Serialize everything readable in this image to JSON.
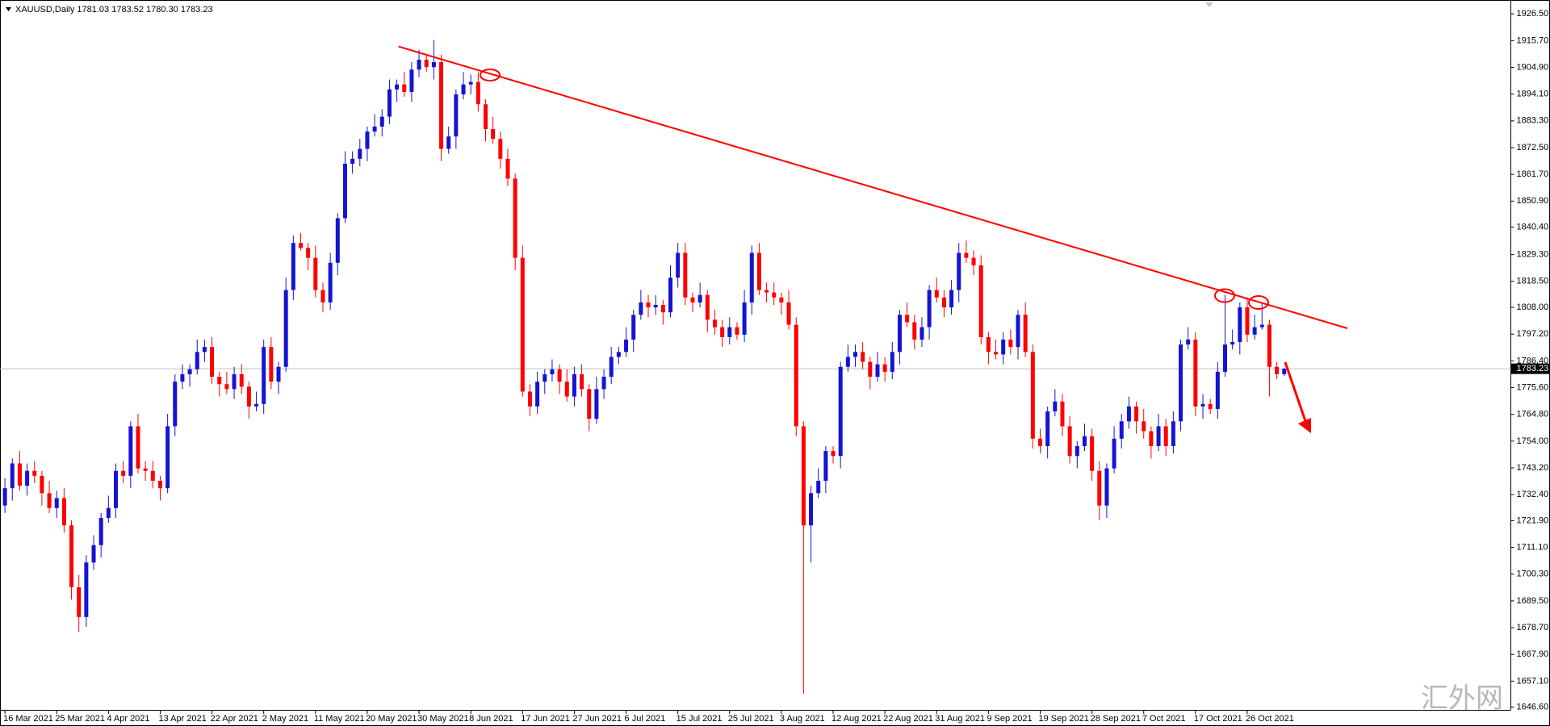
{
  "chart_data": {
    "type": "candlestick",
    "title": "XAUUSD,Daily  1781.03 1783.52 1780.30 1783.23",
    "watermark": "汇外网",
    "up_color": "#1414d2",
    "down_color": "#ff0000",
    "ylim": [
      1645.5,
      1932.1
    ],
    "yticks": [
      {
        "value": 1926.5,
        "label": "1926.50"
      },
      {
        "value": 1915.7,
        "label": "1915.70"
      },
      {
        "value": 1904.9,
        "label": "1904.90"
      },
      {
        "value": 1894.1,
        "label": "1894.10"
      },
      {
        "value": 1883.3,
        "label": "1883.30"
      },
      {
        "value": 1872.5,
        "label": "1872.50"
      },
      {
        "value": 1861.7,
        "label": "1861.70"
      },
      {
        "value": 1850.9,
        "label": "1850.90"
      },
      {
        "value": 1840.4,
        "label": "1840.40"
      },
      {
        "value": 1829.3,
        "label": "1829.30"
      },
      {
        "value": 1818.5,
        "label": "1818.50"
      },
      {
        "value": 1808,
        "label": "1808.00"
      },
      {
        "value": 1797.2,
        "label": "1797.20"
      },
      {
        "value": 1786.4,
        "label": "1786.40"
      },
      {
        "value": 1775.6,
        "label": "1775.60"
      },
      {
        "value": 1764.8,
        "label": "1764.80"
      },
      {
        "value": 1754,
        "label": "1754.00"
      },
      {
        "value": 1743.2,
        "label": "1743.20"
      },
      {
        "value": 1732.4,
        "label": "1732.40"
      },
      {
        "value": 1721.9,
        "label": "1721.90"
      },
      {
        "value": 1711.1,
        "label": "1711.10"
      },
      {
        "value": 1700.3,
        "label": "1700.30"
      },
      {
        "value": 1689.5,
        "label": "1689.50"
      },
      {
        "value": 1678.7,
        "label": "1678.70"
      },
      {
        "value": 1667.9,
        "label": "1667.90"
      },
      {
        "value": 1657.1,
        "label": "1657.10"
      },
      {
        "value": 1646.6,
        "label": "1646.60"
      }
    ],
    "categories": [
      "16 Mar 2021",
      null,
      null,
      null,
      null,
      null,
      null,
      "25 Mar 2021",
      null,
      null,
      null,
      null,
      null,
      null,
      "4 Apr 2021",
      null,
      null,
      null,
      null,
      null,
      null,
      "13 Apr 2021",
      null,
      null,
      null,
      null,
      null,
      null,
      "22 Apr 2021",
      null,
      null,
      null,
      null,
      null,
      null,
      "2 May 2021",
      null,
      null,
      null,
      null,
      null,
      null,
      "11 May 2021",
      null,
      null,
      null,
      null,
      null,
      null,
      "20 May 2021",
      null,
      null,
      null,
      null,
      null,
      null,
      "30 May 2021",
      null,
      null,
      null,
      null,
      null,
      null,
      "8 Jun 2021",
      null,
      null,
      null,
      null,
      null,
      null,
      "17 Jun 2021",
      null,
      null,
      null,
      null,
      null,
      null,
      "27 Jun 2021",
      null,
      null,
      null,
      null,
      null,
      null,
      "6 Jul 2021",
      null,
      null,
      null,
      null,
      null,
      null,
      "15 Jul 2021",
      null,
      null,
      null,
      null,
      null,
      null,
      "25 Jul 2021",
      null,
      null,
      null,
      null,
      null,
      null,
      "3 Aug 2021",
      null,
      null,
      null,
      null,
      null,
      null,
      "12 Aug 2021",
      null,
      null,
      null,
      null,
      null,
      null,
      "22 Aug 2021",
      null,
      null,
      null,
      null,
      null,
      null,
      "31 Aug 2021",
      null,
      null,
      null,
      null,
      null,
      null,
      "9 Sep 2021",
      null,
      null,
      null,
      null,
      null,
      null,
      "19 Sep 2021",
      null,
      null,
      null,
      null,
      null,
      null,
      "28 Sep 2021",
      null,
      null,
      null,
      null,
      null,
      null,
      "7 Oct 2021",
      null,
      null,
      null,
      null,
      null,
      null,
      "17 Oct 2021",
      null,
      null,
      null,
      null,
      null,
      null,
      "26 Oct 2021",
      null,
      null,
      null,
      null,
      null
    ],
    "candles": [
      [
        1728,
        1739,
        1725,
        1735
      ],
      [
        1735,
        1747,
        1730,
        1745
      ],
      [
        1745,
        1750,
        1734,
        1736
      ],
      [
        1736,
        1745,
        1732,
        1742
      ],
      [
        1742,
        1746,
        1737,
        1740
      ],
      [
        1740,
        1742,
        1728,
        1733
      ],
      [
        1733,
        1738,
        1725,
        1727
      ],
      [
        1727,
        1734,
        1723,
        1731
      ],
      [
        1731,
        1735,
        1717,
        1720
      ],
      [
        1720,
        1722,
        1690,
        1695
      ],
      [
        1695,
        1700,
        1677,
        1683
      ],
      [
        1683,
        1708,
        1679,
        1705
      ],
      [
        1705,
        1716,
        1702,
        1712
      ],
      [
        1712,
        1725,
        1707,
        1723
      ],
      [
        1723,
        1732,
        1721,
        1727
      ],
      [
        1727,
        1745,
        1723,
        1742
      ],
      [
        1742,
        1746,
        1737,
        1740
      ],
      [
        1740,
        1762,
        1735,
        1760
      ],
      [
        1760,
        1765,
        1741,
        1743
      ],
      [
        1743,
        1746,
        1738,
        1742
      ],
      [
        1742,
        1746,
        1735,
        1738
      ],
      [
        1738,
        1740,
        1730,
        1735
      ],
      [
        1735,
        1765,
        1733,
        1760
      ],
      [
        1760,
        1781,
        1756,
        1778
      ],
      [
        1778,
        1785,
        1775,
        1781
      ],
      [
        1781,
        1785,
        1776,
        1783
      ],
      [
        1783,
        1795,
        1781,
        1790
      ],
      [
        1790,
        1795,
        1786,
        1792
      ],
      [
        1792,
        1796,
        1777,
        1780
      ],
      [
        1780,
        1782,
        1772,
        1777
      ],
      [
        1777,
        1782,
        1773,
        1775
      ],
      [
        1775,
        1784,
        1771,
        1781
      ],
      [
        1781,
        1785,
        1773,
        1776
      ],
      [
        1776,
        1778,
        1763,
        1768
      ],
      [
        1768,
        1774,
        1766,
        1769
      ],
      [
        1769,
        1795,
        1765,
        1792
      ],
      [
        1792,
        1796,
        1775,
        1778
      ],
      [
        1778,
        1786,
        1773,
        1784
      ],
      [
        1784,
        1820,
        1782,
        1815
      ],
      [
        1815,
        1837,
        1811,
        1834
      ],
      [
        1834,
        1838,
        1831,
        1832
      ],
      [
        1832,
        1834,
        1823,
        1828
      ],
      [
        1828,
        1833,
        1812,
        1815
      ],
      [
        1815,
        1818,
        1806,
        1810
      ],
      [
        1810,
        1830,
        1807,
        1826
      ],
      [
        1826,
        1846,
        1821,
        1844
      ],
      [
        1844,
        1871,
        1842,
        1866
      ],
      [
        1866,
        1871,
        1862,
        1868
      ],
      [
        1868,
        1876,
        1865,
        1872
      ],
      [
        1872,
        1881,
        1867,
        1879
      ],
      [
        1879,
        1886,
        1877,
        1881
      ],
      [
        1881,
        1888,
        1877,
        1885
      ],
      [
        1885,
        1900,
        1882,
        1896
      ],
      [
        1896,
        1900,
        1891,
        1898
      ],
      [
        1898,
        1903,
        1893,
        1895
      ],
      [
        1895,
        1907,
        1891,
        1904
      ],
      [
        1904,
        1912,
        1901,
        1908
      ],
      [
        1908,
        1910,
        1903,
        1905
      ],
      [
        1905,
        1916,
        1900,
        1907
      ],
      [
        1907,
        1910,
        1867,
        1872
      ],
      [
        1872,
        1881,
        1870,
        1877
      ],
      [
        1877,
        1896,
        1872,
        1894
      ],
      [
        1894,
        1903,
        1892,
        1898
      ],
      [
        1898,
        1902,
        1894,
        1899
      ],
      [
        1899,
        1903,
        1887,
        1890
      ],
      [
        1890,
        1892,
        1875,
        1880
      ],
      [
        1880,
        1885,
        1874,
        1876
      ],
      [
        1876,
        1879,
        1864,
        1868
      ],
      [
        1868,
        1872,
        1857,
        1860
      ],
      [
        1860,
        1862,
        1823,
        1828
      ],
      [
        1828,
        1833,
        1772,
        1774
      ],
      [
        1774,
        1777,
        1764,
        1768
      ],
      [
        1768,
        1782,
        1765,
        1778
      ],
      [
        1778,
        1783,
        1773,
        1781
      ],
      [
        1781,
        1787,
        1778,
        1783
      ],
      [
        1783,
        1785,
        1773,
        1778
      ],
      [
        1778,
        1783,
        1770,
        1772
      ],
      [
        1772,
        1784,
        1768,
        1781
      ],
      [
        1781,
        1785,
        1772,
        1775
      ],
      [
        1775,
        1777,
        1758,
        1763
      ],
      [
        1763,
        1780,
        1761,
        1775
      ],
      [
        1775,
        1783,
        1771,
        1780
      ],
      [
        1780,
        1792,
        1777,
        1788
      ],
      [
        1788,
        1792,
        1785,
        1790
      ],
      [
        1790,
        1800,
        1788,
        1795
      ],
      [
        1795,
        1807,
        1790,
        1805
      ],
      [
        1805,
        1815,
        1803,
        1810
      ],
      [
        1810,
        1813,
        1804,
        1808
      ],
      [
        1808,
        1813,
        1805,
        1809
      ],
      [
        1809,
        1811,
        1801,
        1806
      ],
      [
        1806,
        1825,
        1804,
        1820
      ],
      [
        1820,
        1834,
        1816,
        1830
      ],
      [
        1830,
        1834,
        1809,
        1812
      ],
      [
        1812,
        1814,
        1806,
        1810
      ],
      [
        1810,
        1818,
        1808,
        1813
      ],
      [
        1813,
        1815,
        1798,
        1803
      ],
      [
        1803,
        1807,
        1797,
        1800
      ],
      [
        1800,
        1803,
        1792,
        1796
      ],
      [
        1796,
        1804,
        1793,
        1800
      ],
      [
        1800,
        1802,
        1795,
        1797
      ],
      [
        1797,
        1815,
        1794,
        1810
      ],
      [
        1810,
        1833,
        1805,
        1830
      ],
      [
        1830,
        1834,
        1813,
        1815
      ],
      [
        1815,
        1818,
        1810,
        1814
      ],
      [
        1814,
        1818,
        1809,
        1812
      ],
      [
        1812,
        1814,
        1805,
        1810
      ],
      [
        1810,
        1815,
        1799,
        1801
      ],
      [
        1801,
        1804,
        1756,
        1760
      ],
      [
        1760,
        1762,
        1652,
        1720
      ],
      [
        1720,
        1736,
        1705,
        1733
      ],
      [
        1733,
        1743,
        1731,
        1738
      ],
      [
        1738,
        1752,
        1733,
        1750
      ],
      [
        1750,
        1752,
        1745,
        1748
      ],
      [
        1748,
        1786,
        1743,
        1784
      ],
      [
        1784,
        1793,
        1782,
        1788
      ],
      [
        1788,
        1793,
        1784,
        1790
      ],
      [
        1790,
        1794,
        1783,
        1786
      ],
      [
        1786,
        1788,
        1775,
        1780
      ],
      [
        1780,
        1790,
        1778,
        1785
      ],
      [
        1785,
        1788,
        1778,
        1782
      ],
      [
        1782,
        1794,
        1779,
        1790
      ],
      [
        1790,
        1807,
        1785,
        1805
      ],
      [
        1805,
        1810,
        1800,
        1802
      ],
      [
        1802,
        1805,
        1791,
        1795
      ],
      [
        1795,
        1804,
        1792,
        1800
      ],
      [
        1800,
        1817,
        1795,
        1815
      ],
      [
        1815,
        1820,
        1810,
        1812
      ],
      [
        1812,
        1815,
        1804,
        1808
      ],
      [
        1808,
        1819,
        1805,
        1815
      ],
      [
        1815,
        1834,
        1810,
        1830
      ],
      [
        1830,
        1835,
        1826,
        1828
      ],
      [
        1828,
        1831,
        1821,
        1825
      ],
      [
        1825,
        1829,
        1793,
        1796
      ],
      [
        1796,
        1798,
        1785,
        1790
      ],
      [
        1790,
        1795,
        1787,
        1789
      ],
      [
        1789,
        1798,
        1785,
        1795
      ],
      [
        1795,
        1799,
        1789,
        1792
      ],
      [
        1792,
        1807,
        1787,
        1805
      ],
      [
        1805,
        1810,
        1788,
        1790
      ],
      [
        1790,
        1793,
        1751,
        1755
      ],
      [
        1755,
        1759,
        1749,
        1752
      ],
      [
        1752,
        1768,
        1747,
        1766
      ],
      [
        1766,
        1775,
        1764,
        1770
      ],
      [
        1770,
        1773,
        1756,
        1760
      ],
      [
        1760,
        1764,
        1745,
        1748
      ],
      [
        1748,
        1754,
        1743,
        1752
      ],
      [
        1752,
        1761,
        1750,
        1756
      ],
      [
        1756,
        1759,
        1738,
        1742
      ],
      [
        1742,
        1746,
        1722,
        1728
      ],
      [
        1728,
        1745,
        1723,
        1743
      ],
      [
        1743,
        1760,
        1741,
        1755
      ],
      [
        1755,
        1765,
        1751,
        1762
      ],
      [
        1762,
        1772,
        1759,
        1768
      ],
      [
        1768,
        1770,
        1757,
        1762
      ],
      [
        1762,
        1767,
        1755,
        1758
      ],
      [
        1758,
        1760,
        1747,
        1752
      ],
      [
        1752,
        1765,
        1750,
        1760
      ],
      [
        1760,
        1763,
        1748,
        1752
      ],
      [
        1752,
        1766,
        1749,
        1762
      ],
      [
        1762,
        1795,
        1758,
        1793
      ],
      [
        1793,
        1800,
        1791,
        1795
      ],
      [
        1795,
        1798,
        1764,
        1768
      ],
      [
        1768,
        1773,
        1763,
        1769
      ],
      [
        1769,
        1771,
        1765,
        1767
      ],
      [
        1767,
        1786,
        1763,
        1782
      ],
      [
        1782,
        1813,
        1780,
        1793
      ],
      [
        1793,
        1799,
        1791,
        1794
      ],
      [
        1794,
        1810,
        1789,
        1808
      ],
      [
        1808,
        1812,
        1794,
        1797
      ],
      [
        1797,
        1805,
        1795,
        1800
      ],
      [
        1800,
        1810,
        1799,
        1801
      ],
      [
        1801,
        1803,
        1772,
        1784
      ],
      [
        1784,
        1786,
        1779,
        1781.03
      ],
      [
        1781.03,
        1783.52,
        1780.3,
        1783.23
      ]
    ]
  }
}
